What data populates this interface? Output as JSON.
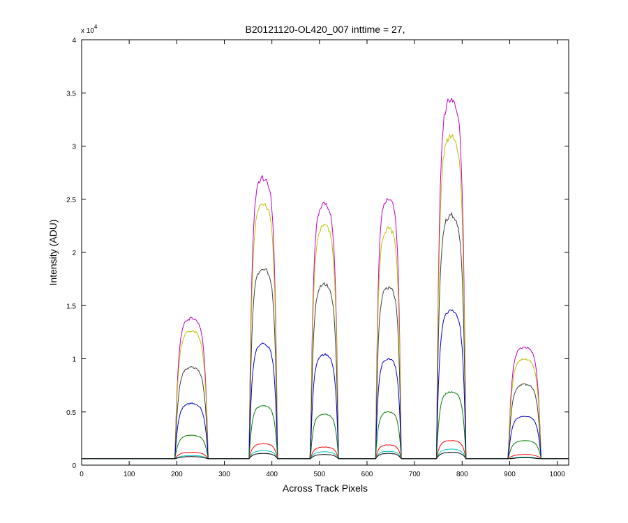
{
  "chart_data": {
    "type": "line",
    "title": "B20121120-OL420_007 inttime = 27,",
    "xlabel": "Across Track Pixels",
    "ylabel": "Intensity (ADU)",
    "y_exponent_label": "x 10",
    "y_exponent_power": "4",
    "xlim": [
      0,
      1024
    ],
    "ylim": [
      0,
      40000
    ],
    "grid": false,
    "legend": "none",
    "x_ticks": [
      0,
      100,
      200,
      300,
      400,
      500,
      600,
      700,
      800,
      900,
      1000
    ],
    "y_ticks": [
      0,
      5000,
      10000,
      15000,
      20000,
      25000,
      30000,
      35000,
      40000
    ],
    "x_tick_labels": [
      "0",
      "100",
      "200",
      "300",
      "400",
      "500",
      "600",
      "700",
      "800",
      "900",
      "1000"
    ],
    "y_tick_labels": [
      "0",
      "0.5",
      "1",
      "1.5",
      "2",
      "2.5",
      "3",
      "3.5",
      "4"
    ],
    "baseline": 600,
    "peaks": [
      {
        "start": 196,
        "end": 266
      },
      {
        "start": 352,
        "end": 412
      },
      {
        "start": 481,
        "end": 540
      },
      {
        "start": 618,
        "end": 672
      },
      {
        "start": 746,
        "end": 808
      },
      {
        "start": 897,
        "end": 966
      }
    ],
    "series": [
      {
        "color": "#bf00bf",
        "levels": [
          13800,
          27000,
          24500,
          25000,
          34500,
          11100
        ]
      },
      {
        "color": "#bfbf00",
        "levels": [
          12600,
          24500,
          22500,
          22300,
          31000,
          10000
        ]
      },
      {
        "color": "#404040",
        "levels": [
          9200,
          18500,
          17000,
          16700,
          23500,
          7600
        ]
      },
      {
        "color": "#0000cc",
        "levels": [
          5800,
          11400,
          10400,
          10000,
          14500,
          4600
        ]
      },
      {
        "color": "#007f00",
        "levels": [
          2800,
          5600,
          4800,
          5000,
          6900,
          2300
        ]
      },
      {
        "color": "#ff0000",
        "levels": [
          1200,
          2000,
          1700,
          1900,
          2300,
          1000
        ]
      },
      {
        "color": "#00bfbf",
        "levels": [
          900,
          1350,
          1250,
          1300,
          1500,
          750
        ]
      },
      {
        "color": "#000000",
        "levels": [
          800,
          1100,
          1000,
          1100,
          1200,
          700
        ]
      }
    ]
  }
}
